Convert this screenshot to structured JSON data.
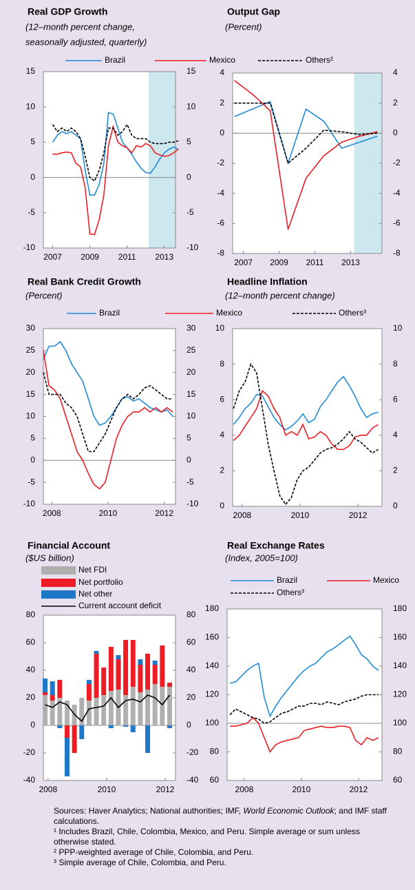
{
  "chart_data": [
    {
      "type": "line",
      "title": "Real GDP Growth",
      "subtitle": [
        "(12–month percent change,",
        " seasonally adjusted, quarterly)"
      ],
      "x": [
        2007,
        2007.25,
        2007.5,
        2007.75,
        2008,
        2008.25,
        2008.5,
        2008.75,
        2009,
        2009.25,
        2009.5,
        2009.75,
        2010,
        2010.25,
        2010.5,
        2010.75,
        2011,
        2011.25,
        2011.5,
        2011.75,
        2012,
        2012.25,
        2012.5,
        2012.75,
        2013,
        2013.25,
        2013.5,
        2013.75
      ],
      "series": [
        {
          "name": "Brazil",
          "color": "#1f8ad8",
          "values": [
            5,
            6,
            6.5,
            6.2,
            6.5,
            6,
            5.5,
            1,
            -2.5,
            -2.5,
            -1,
            2,
            9.2,
            9,
            7,
            5,
            4.2,
            3.3,
            2.2,
            1.3,
            0.7,
            0.6,
            1.5,
            2.6,
            3.5,
            4,
            4.3,
            4
          ]
        },
        {
          "name": "Mexico",
          "color": "#ee1c24",
          "values": [
            3.3,
            3.3,
            3.5,
            3.6,
            3.5,
            2,
            1.5,
            -1.5,
            -8,
            -8.1,
            -6,
            -2.5,
            4.5,
            7.2,
            5,
            4.5,
            4.2,
            3.5,
            4.5,
            4.3,
            4.8,
            4.5,
            3.5,
            3.2,
            3,
            3.1,
            3.5,
            4
          ]
        },
        {
          "name": "Others²",
          "color": "#000000",
          "dashed": true,
          "values": [
            7.5,
            6.5,
            7,
            6.5,
            7,
            6.5,
            5.5,
            3,
            0,
            -0.5,
            1,
            3.5,
            7,
            7,
            6,
            6.5,
            7.5,
            6,
            5.5,
            5.5,
            5.5,
            5,
            4.8,
            4.8,
            4.8,
            5,
            5,
            5.2
          ]
        }
      ],
      "xlim": [
        2006.5,
        2013.6
      ],
      "xticks": [
        2007,
        2009,
        2011,
        2013
      ],
      "ylim": [
        -10,
        15
      ],
      "yticks": [
        -10,
        -5,
        0,
        5,
        10,
        15
      ],
      "hline": 0,
      "shade": [
        2012.15,
        2013.6
      ],
      "shade_color": "#cce7ee"
    },
    {
      "type": "line",
      "title": "Output Gap",
      "subtitle": [
        "(Percent)"
      ],
      "x": [
        2006.5,
        2007.5,
        2008.5,
        2009.5,
        2010.5,
        2011.5,
        2012.5,
        2013.5,
        2014.5
      ],
      "series": [
        {
          "color": "#1f8ad8",
          "values": [
            1.1,
            1.6,
            2.1,
            -2,
            1.6,
            0.8,
            -1,
            -0.6,
            -0.2
          ]
        },
        {
          "color": "#ee1c24",
          "values": [
            3.5,
            2.6,
            1.5,
            -6.4,
            -3,
            -1.5,
            -0.6,
            -0.2,
            0.1
          ]
        },
        {
          "color": "#000000",
          "dashed": true,
          "values": [
            2,
            2,
            2,
            -2,
            -1,
            0.2,
            0.1,
            -0.1,
            0
          ]
        }
      ],
      "xlim": [
        2006.4,
        2014.75
      ],
      "xticks": [
        2007,
        2009,
        2011,
        2013
      ],
      "ylim": [
        -8,
        4
      ],
      "yticks": [
        -8,
        -6,
        -4,
        -2,
        0,
        2,
        4
      ],
      "hline": 0,
      "shade": [
        2013.2,
        2014.75
      ],
      "shade_color": "#cce7ee"
    },
    {
      "type": "line",
      "title": "Real Bank Credit Growth",
      "subtitle": [
        "(Percent)"
      ],
      "x": [
        2007.7,
        2007.9,
        2008.1,
        2008.3,
        2008.5,
        2008.7,
        2008.9,
        2009.1,
        2009.3,
        2009.5,
        2009.7,
        2009.9,
        2010.1,
        2010.3,
        2010.5,
        2010.7,
        2010.9,
        2011.1,
        2011.3,
        2011.5,
        2011.7,
        2011.9,
        2012.1,
        2012.3
      ],
      "series": [
        {
          "name": "Brazil",
          "color": "#1f8ad8",
          "values": [
            23,
            26,
            26,
            27,
            25,
            22,
            20,
            18,
            14,
            10,
            8,
            8.5,
            10,
            12,
            14,
            14.5,
            13.5,
            14,
            13,
            12,
            11.5,
            11,
            11.5,
            10
          ]
        },
        {
          "name": "Mexico",
          "color": "#ee1c24",
          "values": [
            25,
            17,
            16,
            14,
            10,
            6,
            2,
            0,
            -3,
            -5.5,
            -6.5,
            -5,
            0,
            5,
            8,
            10,
            11,
            11,
            12,
            11,
            12,
            11,
            12,
            11
          ]
        },
        {
          "name": "Others³",
          "color": "#000000",
          "dashed": true,
          "values": [
            20,
            15,
            15,
            15,
            13,
            12,
            10,
            6,
            2,
            2,
            4,
            6,
            9,
            12,
            14,
            15,
            14,
            15,
            16.5,
            17,
            16,
            15,
            14,
            14
          ]
        }
      ],
      "xlim": [
        2007.7,
        2012.4
      ],
      "xticks": [
        2008,
        2010,
        2012
      ],
      "ylim": [
        -10,
        30
      ],
      "yticks": [
        -10,
        -5,
        0,
        5,
        10,
        15,
        20,
        25,
        30
      ],
      "hline": 0
    },
    {
      "type": "line",
      "title": "Headline Inflation",
      "subtitle": [
        "(12–month  percent change)"
      ],
      "x": [
        2007.7,
        2007.9,
        2008.1,
        2008.3,
        2008.5,
        2008.7,
        2008.9,
        2009.1,
        2009.3,
        2009.5,
        2009.7,
        2009.9,
        2010.1,
        2010.3,
        2010.5,
        2010.7,
        2010.9,
        2011.1,
        2011.3,
        2011.5,
        2011.7,
        2011.9,
        2012.1,
        2012.3,
        2012.5,
        2012.7
      ],
      "series": [
        {
          "color": "#1f8ad8",
          "values": [
            4.6,
            5,
            5.5,
            5.8,
            6.3,
            6.2,
            5.6,
            5,
            4.6,
            4.3,
            4.5,
            4.8,
            5.2,
            4.7,
            4.9,
            5.6,
            6,
            6.5,
            7,
            7.3,
            6.8,
            6.2,
            5.5,
            5,
            5.2,
            5.3
          ]
        },
        {
          "color": "#ee1c24",
          "values": [
            3.7,
            4,
            4.5,
            5,
            5.5,
            6.5,
            6.2,
            5.5,
            5,
            4,
            4.2,
            4,
            4.6,
            3.8,
            3.9,
            4.2,
            4,
            3.5,
            3.2,
            3.2,
            3.4,
            3.9,
            4,
            4,
            4.4,
            4.6
          ]
        },
        {
          "color": "#000000",
          "dashed": true,
          "values": [
            5.5,
            6.5,
            7,
            8,
            7.5,
            5.5,
            3.5,
            2,
            0.6,
            0.1,
            0.5,
            1.5,
            2,
            2.2,
            2.6,
            3,
            3.2,
            3.3,
            3.5,
            3.8,
            4.2,
            3.8,
            3.6,
            3.3,
            3,
            3.2
          ]
        }
      ],
      "xlim": [
        2007.67,
        2012.83
      ],
      "xticks": [
        2008,
        2010,
        2012
      ],
      "ylim": [
        0,
        10
      ],
      "yticks": [
        0,
        2,
        4,
        6,
        8,
        10
      ]
    },
    {
      "type": "bar",
      "stacked": true,
      "title": "Financial Account",
      "subtitle": [
        "($US billion)"
      ],
      "x": [
        2007.9,
        2008.15,
        2008.4,
        2008.65,
        2008.9,
        2009.15,
        2009.4,
        2009.65,
        2009.9,
        2010.15,
        2010.4,
        2010.65,
        2010.9,
        2011.15,
        2011.4,
        2011.65,
        2011.9,
        2012.15
      ],
      "series": [
        {
          "name": "Net FDI",
          "color": "#b0b0b0",
          "values": [
            22,
            18,
            20,
            18,
            15,
            20,
            18,
            20,
            22,
            25,
            26,
            22,
            28,
            24,
            26,
            30,
            28,
            28
          ]
        },
        {
          "name": "Net portfolio",
          "color": "#ee1c24",
          "values": [
            2,
            4,
            13,
            -9,
            -20,
            0,
            12,
            32,
            20,
            32,
            22,
            40,
            34,
            20,
            26,
            14,
            30,
            3
          ]
        },
        {
          "name": "Net other",
          "color": "#1f78c8",
          "values": [
            10,
            10,
            -2,
            -28,
            0,
            -10,
            3,
            2,
            0,
            -2,
            3,
            -1,
            -5,
            4,
            -20,
            3,
            0,
            -2
          ]
        },
        {
          "name": "Current account deficit",
          "color": "#000000",
          "type": "line",
          "values": [
            15,
            13,
            17,
            15,
            8,
            3,
            12,
            13,
            14,
            20,
            13,
            18,
            19,
            17,
            22,
            20,
            15,
            22
          ]
        }
      ],
      "xlim": [
        2007.84,
        2012.35
      ],
      "xticks": [
        2008,
        2010,
        2012
      ],
      "ylim": [
        -40,
        80
      ],
      "yticks": [
        -40,
        -20,
        0,
        20,
        40,
        60,
        80
      ],
      "hline": 0
    },
    {
      "type": "line",
      "title": "Real Exchange Rates",
      "subtitle": [
        "(Index, 2005=100)"
      ],
      "x": [
        2007.5,
        2007.7,
        2007.9,
        2008.1,
        2008.3,
        2008.5,
        2008.7,
        2008.9,
        2009.1,
        2009.3,
        2009.5,
        2009.7,
        2009.9,
        2010.1,
        2010.3,
        2010.5,
        2010.7,
        2010.9,
        2011.1,
        2011.3,
        2011.5,
        2011.7,
        2011.9,
        2012.1,
        2012.3,
        2012.5,
        2012.7
      ],
      "series": [
        {
          "name": "Brazil",
          "color": "#1f8ad8",
          "values": [
            128,
            129,
            133,
            137,
            140,
            142,
            118,
            105,
            112,
            118,
            123,
            128,
            133,
            137,
            140,
            142,
            146,
            150,
            152,
            155,
            158,
            161,
            155,
            148,
            145,
            140,
            137
          ]
        },
        {
          "name": "Mexico",
          "color": "#ee1c24",
          "values": [
            98,
            98,
            99,
            100,
            104,
            100,
            90,
            80,
            85,
            87,
            88,
            89,
            90,
            95,
            96,
            97,
            98,
            97,
            97,
            98,
            98,
            97,
            88,
            85,
            90,
            88,
            90
          ]
        },
        {
          "name": "Others³",
          "color": "#000000",
          "dashed": true,
          "values": [
            106,
            110,
            108,
            106,
            104,
            103,
            100,
            101,
            104,
            107,
            108,
            110,
            112,
            112,
            114,
            114,
            113,
            115,
            114,
            113,
            115,
            116,
            117,
            119,
            120,
            120,
            120
          ]
        }
      ],
      "xlim": [
        2007.4,
        2012.82
      ],
      "xticks": [
        2008,
        2010,
        2012
      ],
      "ylim": [
        60,
        180
      ],
      "yticks": [
        60,
        80,
        100,
        120,
        140,
        160,
        180
      ],
      "hline": 100
    }
  ],
  "footnotes": {
    "sources": [
      "Sources: Haver Analytics; National authorities; IMF, ",
      "World Economic Outlook",
      "; and IMF staff calculations."
    ],
    "notes": [
      "¹ Includes Brazil, Chile, Colombia, Mexico, and Peru. Simple average or sum unless otherwise stated.",
      "² PPP-weighted average of Chile, Colombia, and Peru.",
      "³ Simple average of Chile, Colombia, and Peru."
    ]
  }
}
